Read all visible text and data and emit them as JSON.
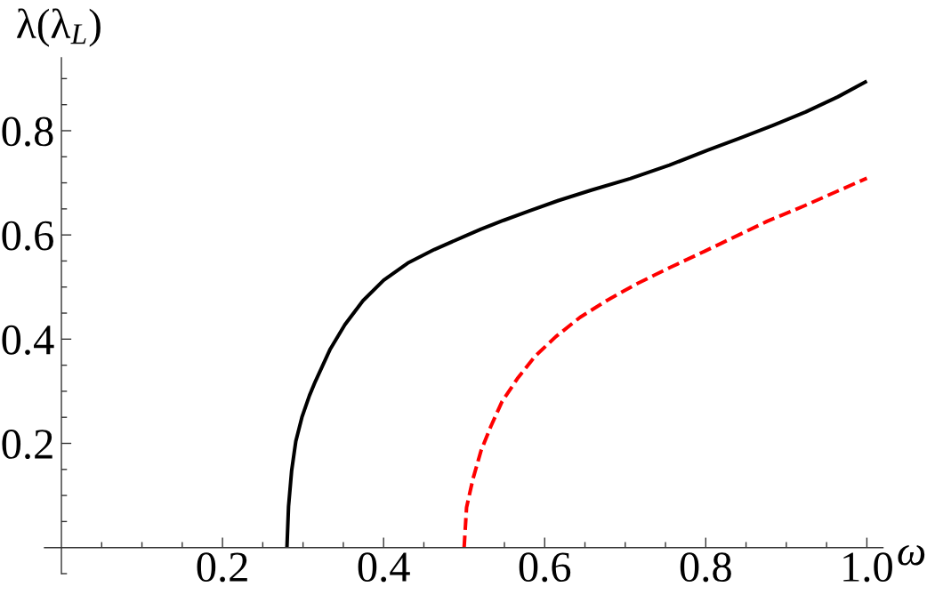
{
  "chart_data": {
    "type": "line",
    "xlabel": "ω",
    "ylabel": "λ(λ$_{L}$)",
    "xlim": [
      -0.021,
      1.02
    ],
    "ylim": [
      -0.05,
      0.94
    ],
    "xticks": [
      {
        "value": 0.05,
        "label": null
      },
      {
        "value": 0.1,
        "label": null
      },
      {
        "value": 0.15,
        "label": null
      },
      0.2,
      {
        "value": 0.25,
        "label": null
      },
      {
        "value": 0.3,
        "label": null
      },
      {
        "value": 0.35,
        "label": null
      },
      0.4,
      {
        "value": 0.45,
        "label": null
      },
      {
        "value": 0.5,
        "label": null
      },
      {
        "value": 0.55,
        "label": null
      },
      0.6,
      {
        "value": 0.65,
        "label": null
      },
      {
        "value": 0.7,
        "label": null
      },
      {
        "value": 0.75,
        "label": null
      },
      0.8,
      {
        "value": 0.85,
        "label": null
      },
      {
        "value": 0.9,
        "label": null
      },
      {
        "value": 0.95,
        "label": null
      },
      {
        "value": 1,
        "label": "1.0"
      }
    ],
    "yticks": [
      {
        "value": -0.05,
        "label": null
      },
      {
        "value": 0.05,
        "label": null
      },
      {
        "value": 0.1,
        "label": null
      },
      {
        "value": 0.15,
        "label": null
      },
      0.2,
      {
        "value": 0.25,
        "label": null
      },
      {
        "value": 0.3,
        "label": null
      },
      {
        "value": 0.35,
        "label": null
      },
      0.4,
      {
        "value": 0.45,
        "label": null
      },
      {
        "value": 0.5,
        "label": null
      },
      {
        "value": 0.55,
        "label": null
      },
      0.6,
      {
        "value": 0.65,
        "label": null
      },
      {
        "value": 0.7,
        "label": null
      },
      {
        "value": 0.75,
        "label": null
      },
      0.8,
      {
        "value": 0.85,
        "label": null
      },
      {
        "value": 0.9,
        "label": null
      }
    ],
    "series": [
      {
        "color": "#000000",
        "line_style": "solid",
        "x": [
          0.28,
          0.282,
          0.2858,
          0.291,
          0.2986,
          0.308,
          0.3153,
          0.3338,
          0.352,
          0.3745,
          0.4,
          0.43,
          0.463,
          0.5,
          0.521,
          0.549,
          0.581,
          0.617,
          0.658,
          0.706,
          0.755,
          0.803,
          0.843,
          0.883,
          0.924,
          0.964,
          1.0
        ],
        "values": [
          0.0,
          0.079,
          0.147,
          0.204,
          0.25,
          0.292,
          0.319,
          0.381,
          0.428,
          0.474,
          0.513,
          0.546,
          0.572,
          0.597,
          0.611,
          0.628,
          0.646,
          0.666,
          0.686,
          0.708,
          0.734,
          0.763,
          0.786,
          0.81,
          0.836,
          0.865,
          0.895
        ]
      },
      {
        "color": "#ff0000",
        "line_style": "dashed",
        "x": [
          0.5,
          0.503,
          0.511,
          0.521,
          0.533,
          0.547,
          0.566,
          0.588,
          0.614,
          0.644,
          0.677,
          0.714,
          0.755,
          0.799,
          0.841,
          0.876,
          0.924,
          1.0
        ],
        "values": [
          0.0,
          0.077,
          0.132,
          0.186,
          0.232,
          0.28,
          0.324,
          0.367,
          0.405,
          0.442,
          0.474,
          0.506,
          0.537,
          0.569,
          0.6,
          0.626,
          0.657,
          0.709
        ]
      }
    ]
  }
}
